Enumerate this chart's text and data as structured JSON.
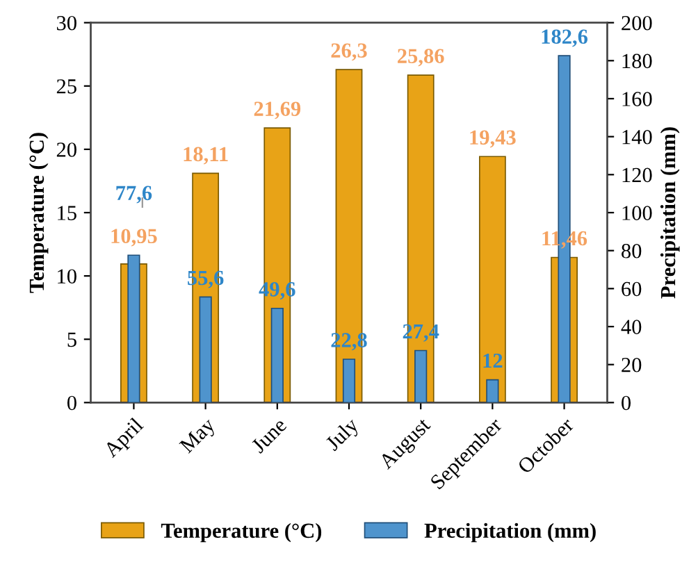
{
  "chart_data": {
    "type": "bar",
    "categories": [
      "April",
      "May",
      "June",
      "July",
      "August",
      "September",
      "October"
    ],
    "ylabel": "Temperature (°C)",
    "y2label": "Precipitation (mm)",
    "ylim": [
      0,
      30
    ],
    "yticks": [
      0,
      5,
      10,
      15,
      20,
      25,
      30
    ],
    "y2lim": [
      0,
      200
    ],
    "y2ticks": [
      0,
      20,
      40,
      60,
      80,
      100,
      120,
      140,
      160,
      180,
      200
    ],
    "series": [
      {
        "name": "Temperature (°C)",
        "color": "#e8a317",
        "values": [
          10.95,
          18.11,
          21.69,
          26.3,
          25.86,
          19.43,
          11.46
        ],
        "value_labels": [
          "10,95",
          "18,11",
          "21,69",
          "26,3",
          "25,86",
          "19,43",
          "11,46"
        ]
      },
      {
        "name": "Precipitation (mm)",
        "color": "#4f94cd",
        "axis": "y2",
        "values": [
          77.6,
          55.6,
          49.6,
          22.8,
          27.4,
          12,
          182.6
        ],
        "value_labels": [
          "77,6",
          "55,6",
          "49,6",
          "22,8",
          "27,4",
          "12",
          "182,6"
        ]
      }
    ],
    "grid": false,
    "legend": "bottom"
  }
}
